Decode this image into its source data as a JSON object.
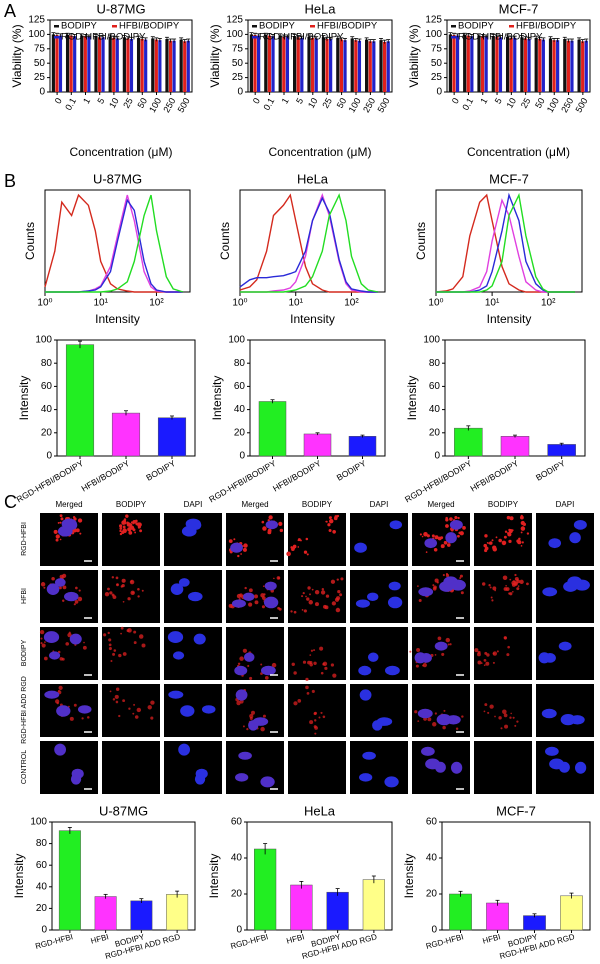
{
  "panel_labels": [
    "A",
    "B",
    "C"
  ],
  "microscopy": {
    "column_headers": [
      "Merged",
      "BODIPY",
      "DAPI",
      "Merged",
      "BODIPY",
      "DAPI",
      "Merged",
      "BODIPY",
      "DAPI"
    ],
    "row_labels": [
      "RGD-HFBI",
      "HFBI",
      "BODIPY",
      "RGD-HFBI ADD RGD",
      "CONTROL"
    ]
  },
  "chart_data": [
    {
      "type": "bar",
      "title": "U-87MG",
      "y_label": "Viability (%)",
      "x_label": "Concentration (μM)",
      "categories": [
        "0",
        "0.1",
        "1",
        "5",
        "10",
        "25",
        "50",
        "100",
        "250",
        "500"
      ],
      "ylim": [
        0,
        125
      ],
      "yticks": [
        0,
        25,
        50,
        75,
        100,
        125
      ],
      "series": [
        {
          "name": "BODIPY",
          "color": "#111111",
          "values": [
            100,
            99,
            98,
            97,
            96,
            95,
            94,
            93,
            92,
            91
          ],
          "errors": [
            3,
            3,
            3,
            3,
            3,
            3,
            3,
            3,
            3,
            3
          ]
        },
        {
          "name": "HFBI/BODIPY",
          "color": "#e0201b",
          "values": [
            99,
            98,
            97,
            95,
            94,
            93,
            92,
            91,
            89,
            88
          ],
          "errors": [
            3,
            3,
            3,
            3,
            3,
            3,
            3,
            3,
            3,
            3
          ]
        },
        {
          "name": "RGD-HFBI/BODIPY",
          "color": "#2222c8",
          "values": [
            98,
            97,
            96,
            95,
            93,
            92,
            91,
            90,
            89,
            89
          ],
          "errors": [
            3,
            3,
            3,
            3,
            3,
            3,
            3,
            3,
            3,
            3
          ]
        }
      ]
    },
    {
      "type": "bar",
      "title": "HeLa",
      "y_label": "Viability (%)",
      "x_label": "Concentration (μM)",
      "categories": [
        "0",
        "0.1",
        "1",
        "5",
        "10",
        "25",
        "50",
        "100",
        "250",
        "500"
      ],
      "ylim": [
        0,
        125
      ],
      "yticks": [
        0,
        25,
        50,
        75,
        100,
        125
      ],
      "series": [
        {
          "name": "BODIPY",
          "color": "#111111",
          "values": [
            100,
            99,
            98,
            97,
            96,
            95,
            94,
            93,
            91,
            90
          ],
          "errors": [
            3,
            3,
            3,
            3,
            3,
            3,
            3,
            3,
            3,
            3
          ]
        },
        {
          "name": "HFBI/BODIPY",
          "color": "#e0201b",
          "values": [
            99,
            98,
            96,
            95,
            94,
            92,
            91,
            90,
            88,
            87
          ],
          "errors": [
            3,
            3,
            3,
            3,
            3,
            3,
            3,
            3,
            3,
            3
          ]
        },
        {
          "name": "RGD-HFBI/BODIPY",
          "color": "#2222c8",
          "values": [
            98,
            97,
            96,
            94,
            93,
            92,
            90,
            89,
            88,
            88
          ],
          "errors": [
            3,
            3,
            3,
            3,
            3,
            3,
            3,
            3,
            3,
            3
          ]
        }
      ]
    },
    {
      "type": "bar",
      "title": "MCF-7",
      "y_label": "Viability (%)",
      "x_label": "Concentration (μM)",
      "categories": [
        "0",
        "0.1",
        "1",
        "5",
        "10",
        "25",
        "50",
        "100",
        "250",
        "500"
      ],
      "ylim": [
        0,
        125
      ],
      "yticks": [
        0,
        25,
        50,
        75,
        100,
        125
      ],
      "series": [
        {
          "name": "BODIPY",
          "color": "#111111",
          "values": [
            100,
            99,
            98,
            97,
            96,
            95,
            94,
            93,
            92,
            91
          ],
          "errors": [
            3,
            3,
            3,
            3,
            3,
            3,
            3,
            3,
            3,
            3
          ]
        },
        {
          "name": "HFBI/BODIPY",
          "color": "#e0201b",
          "values": [
            99,
            98,
            97,
            96,
            94,
            93,
            92,
            90,
            89,
            88
          ],
          "errors": [
            3,
            3,
            3,
            3,
            3,
            3,
            3,
            3,
            3,
            3
          ]
        },
        {
          "name": "RGD-HFBI/BODIPY",
          "color": "#2222c8",
          "values": [
            98,
            97,
            96,
            95,
            94,
            92,
            91,
            90,
            89,
            89
          ],
          "errors": [
            3,
            3,
            3,
            3,
            3,
            3,
            3,
            3,
            3,
            3
          ]
        }
      ]
    },
    {
      "type": "line",
      "title": "U-87MG",
      "y_label": "Counts",
      "x_label": "Intensity",
      "xscale": "log",
      "xlim": [
        1,
        400
      ],
      "xticks": [
        {
          "value": 1,
          "label": "10⁰"
        },
        {
          "value": 10,
          "label": "10¹"
        },
        {
          "value": 100,
          "label": "10²"
        }
      ],
      "ylim": [
        0,
        100
      ],
      "x": [
        1,
        1.5,
        2,
        3,
        4,
        6,
        8,
        10,
        15,
        20,
        30,
        40,
        60,
        80,
        100,
        150,
        200,
        300
      ],
      "series": [
        {
          "color": "#d42a1e",
          "values": [
            5,
            40,
            88,
            75,
            95,
            85,
            60,
            30,
            8,
            3,
            1,
            0,
            0,
            0,
            0,
            0,
            0,
            0
          ]
        },
        {
          "color": "#e040e0",
          "values": [
            0,
            0,
            0,
            0,
            0,
            1,
            3,
            6,
            25,
            55,
            95,
            70,
            20,
            5,
            1,
            0,
            0,
            0
          ]
        },
        {
          "color": "#2a2ad8",
          "values": [
            0,
            0,
            0,
            0,
            0,
            1,
            2,
            5,
            20,
            50,
            90,
            80,
            30,
            8,
            2,
            0,
            0,
            0
          ]
        },
        {
          "color": "#22dd22",
          "values": [
            0,
            0,
            0,
            0,
            0,
            0,
            0,
            0,
            1,
            3,
            10,
            30,
            75,
            95,
            60,
            15,
            3,
            0
          ]
        }
      ]
    },
    {
      "type": "line",
      "title": "HeLa",
      "y_label": "Counts",
      "x_label": "Intensity",
      "xscale": "log",
      "xlim": [
        1,
        400
      ],
      "xticks": [
        {
          "value": 1,
          "label": "10⁰"
        },
        {
          "value": 10,
          "label": "10¹"
        },
        {
          "value": 100,
          "label": "10²"
        }
      ],
      "ylim": [
        0,
        100
      ],
      "x": [
        1,
        1.5,
        2,
        3,
        4,
        6,
        8,
        10,
        15,
        20,
        30,
        40,
        60,
        80,
        100,
        150,
        200,
        300
      ],
      "series": [
        {
          "color": "#d42a1e",
          "values": [
            2,
            5,
            12,
            40,
            75,
            85,
            95,
            70,
            25,
            8,
            2,
            0,
            0,
            0,
            0,
            0,
            0,
            0
          ]
        },
        {
          "color": "#e040e0",
          "values": [
            0,
            0,
            0,
            0,
            1,
            2,
            4,
            10,
            35,
            70,
            95,
            75,
            30,
            8,
            2,
            0,
            0,
            0
          ]
        },
        {
          "color": "#2a2ad8",
          "values": [
            5,
            12,
            14,
            14,
            15,
            16,
            18,
            20,
            40,
            70,
            92,
            78,
            32,
            10,
            3,
            1,
            0,
            0
          ]
        },
        {
          "color": "#22dd22",
          "values": [
            0,
            0,
            0,
            0,
            0,
            0,
            1,
            2,
            6,
            15,
            40,
            75,
            95,
            70,
            35,
            8,
            2,
            0
          ]
        }
      ]
    },
    {
      "type": "line",
      "title": "MCF-7",
      "y_label": "Counts",
      "x_label": "Intensity",
      "xscale": "log",
      "xlim": [
        1,
        400
      ],
      "xticks": [
        {
          "value": 1,
          "label": "10⁰"
        },
        {
          "value": 10,
          "label": "10¹"
        },
        {
          "value": 100,
          "label": "10²"
        }
      ],
      "ylim": [
        0,
        100
      ],
      "x": [
        1,
        1.5,
        2,
        3,
        4,
        6,
        8,
        10,
        15,
        20,
        30,
        40,
        60,
        80,
        100,
        150,
        200,
        300
      ],
      "series": [
        {
          "color": "#d42a1e",
          "values": [
            0,
            1,
            3,
            15,
            55,
            88,
            95,
            70,
            25,
            8,
            2,
            0,
            0,
            0,
            0,
            0,
            0,
            0
          ]
        },
        {
          "color": "#e040e0",
          "values": [
            0,
            0,
            0,
            0,
            1,
            5,
            20,
            50,
            90,
            75,
            35,
            10,
            2,
            0,
            0,
            0,
            0,
            0
          ]
        },
        {
          "color": "#2a2ad8",
          "values": [
            0,
            0,
            0,
            0,
            0,
            2,
            6,
            20,
            60,
            95,
            70,
            30,
            8,
            2,
            0,
            0,
            0,
            0
          ]
        },
        {
          "color": "#22dd22",
          "values": [
            0,
            0,
            0,
            0,
            0,
            0,
            2,
            6,
            30,
            75,
            95,
            55,
            15,
            3,
            0,
            0,
            0,
            0
          ]
        }
      ]
    },
    {
      "type": "bar",
      "y_label": "Intensity",
      "categories": [
        "RGD-HFBI/BODIPY",
        "HFBI/BODIPY",
        "BODIPY"
      ],
      "values": [
        96,
        37,
        33
      ],
      "errors": [
        3,
        2,
        1.5
      ],
      "colors": [
        "#22ee22",
        "#ff33ff",
        "#1a1aff"
      ],
      "ylim": [
        0,
        100
      ],
      "yticks": [
        0,
        20,
        40,
        60,
        80,
        100
      ]
    },
    {
      "type": "bar",
      "y_label": "Intensity",
      "categories": [
        "RGD-HFBI/BODIPY",
        "HFBI/BODIPY",
        "BODIPY"
      ],
      "values": [
        47,
        19,
        17
      ],
      "errors": [
        1.5,
        1,
        1
      ],
      "colors": [
        "#22ee22",
        "#ff33ff",
        "#1a1aff"
      ],
      "ylim": [
        0,
        100
      ],
      "yticks": [
        0,
        20,
        40,
        60,
        80,
        100
      ]
    },
    {
      "type": "bar",
      "y_label": "Intensity",
      "categories": [
        "RGD-HFBI/BODIPY",
        "HFBI/BODIPY",
        "BODIPY"
      ],
      "values": [
        24,
        17,
        10
      ],
      "errors": [
        2,
        1,
        1
      ],
      "colors": [
        "#22ee22",
        "#ff33ff",
        "#1a1aff"
      ],
      "ylim": [
        0,
        100
      ],
      "yticks": [
        0,
        20,
        40,
        60,
        80,
        100
      ]
    },
    {
      "type": "bar",
      "title": "U-87MG",
      "y_label": "Intensity",
      "categories": [
        "RGD-HFBI",
        "HFBI",
        "BODIPY",
        "RGD-HFBI ADD RGD"
      ],
      "values": [
        92,
        31,
        27,
        33
      ],
      "errors": [
        3,
        2,
        2,
        3
      ],
      "colors": [
        "#22ee22",
        "#ff33ff",
        "#1a1aff",
        "#ffff88"
      ],
      "ylim": [
        0,
        100
      ],
      "yticks": [
        0,
        20,
        40,
        60,
        80,
        100
      ]
    },
    {
      "type": "bar",
      "title": "HeLa",
      "y_label": "Intensity",
      "categories": [
        "RGD-HFBI",
        "HFBI",
        "BODIPY",
        "RGD-HFBI ADD RGD"
      ],
      "values": [
        45,
        25,
        21,
        28
      ],
      "errors": [
        3,
        2,
        2,
        2
      ],
      "colors": [
        "#22ee22",
        "#ff33ff",
        "#1a1aff",
        "#ffff88"
      ],
      "ylim": [
        0,
        60
      ],
      "yticks": [
        0,
        20,
        40,
        60
      ]
    },
    {
      "type": "bar",
      "title": "MCF-7",
      "y_label": "Intensity",
      "categories": [
        "RGD-HFBI",
        "HFBI",
        "BODIPY",
        "RGD-HFBI ADD RGD"
      ],
      "values": [
        20,
        15,
        8,
        19
      ],
      "errors": [
        1.5,
        1.5,
        1,
        1.5
      ],
      "colors": [
        "#22ee22",
        "#ff33ff",
        "#1a1aff",
        "#ffff88"
      ],
      "ylim": [
        0,
        60
      ],
      "yticks": [
        0,
        20,
        40,
        60
      ]
    }
  ]
}
